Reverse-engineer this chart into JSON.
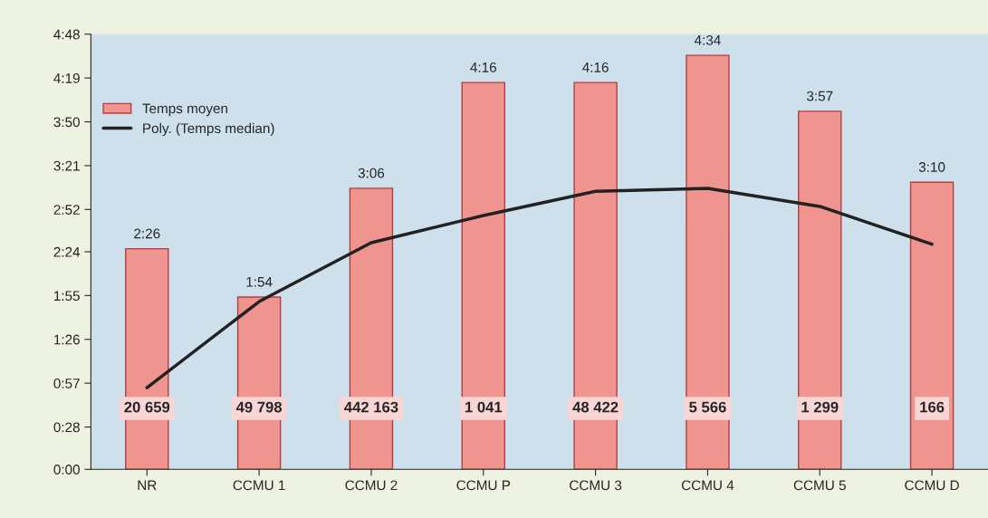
{
  "chart_data": {
    "type": "bar",
    "categories": [
      "NR",
      "CCMU 1",
      "CCMU 2",
      "CCMU P",
      "CCMU 3",
      "CCMU 4",
      "CCMU 5",
      "CCMU D"
    ],
    "series": [
      {
        "name": "Temps moyen",
        "color": "#f09490",
        "values": [
          146,
          114,
          186,
          256,
          256,
          274,
          237,
          190
        ],
        "value_labels": [
          "2:26",
          "1:54",
          "3:06",
          "4:16",
          "4:16",
          "4:34",
          "3:57",
          "3:10"
        ]
      },
      {
        "name": "Poly. (Temps median)",
        "type": "line",
        "color": "#222222",
        "values": [
          54,
          111,
          150,
          168,
          184,
          186,
          174,
          149
        ]
      }
    ],
    "ylim": [
      0,
      288
    ],
    "yticks": [
      {
        "value": 0,
        "label": "0:00"
      },
      {
        "value": 28,
        "label": "0:28"
      },
      {
        "value": 57,
        "label": "0:57"
      },
      {
        "value": 86,
        "label": "1:26"
      },
      {
        "value": 115,
        "label": "1:55"
      },
      {
        "value": 144,
        "label": "2:24"
      },
      {
        "value": 172,
        "label": "2:52"
      },
      {
        "value": 201,
        "label": "3:21"
      },
      {
        "value": 230,
        "label": "3:50"
      },
      {
        "value": 259,
        "label": "4:19"
      },
      {
        "value": 288,
        "label": "4:48"
      }
    ],
    "annotations": [
      "20 659",
      "49 798",
      "442 163",
      "1 041",
      "48 422",
      "5 566",
      "1 299",
      "166"
    ],
    "grid": false,
    "legend": "top left"
  }
}
